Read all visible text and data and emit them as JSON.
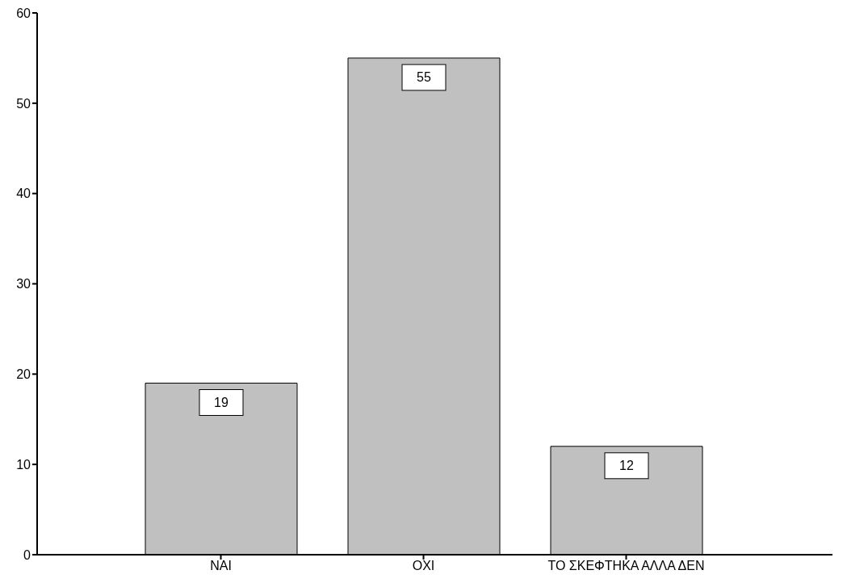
{
  "chart_data": {
    "type": "bar",
    "categories": [
      "ΝΑΙ",
      "ΟΧΙ",
      "ΤΟ ΣΚΕΦΤΗΚΑ ΑΛΛΑ ΔΕΝ"
    ],
    "values": [
      19,
      55,
      12
    ],
    "color": "#c0c0c0",
    "ylim": [
      0,
      60
    ],
    "yticks": [
      0,
      10,
      20,
      30,
      40,
      50,
      60
    ],
    "grid": false,
    "data_labels": true
  }
}
